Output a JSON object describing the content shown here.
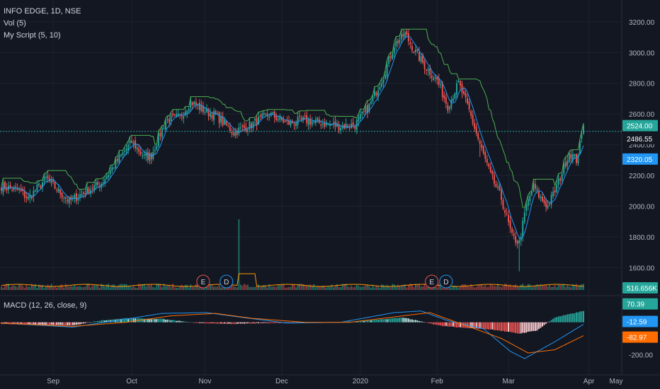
{
  "header": {
    "title": "INFO EDGE, 1D, NSE",
    "vol_label": "Vol (5)",
    "script_label": "My Script (5, 10)",
    "macd_label": "MACD (12, 26, close, 9)"
  },
  "colors": {
    "background": "#131722",
    "up": "#26a69a",
    "down": "#ef5350",
    "fast_line": "#2196f3",
    "slow_line": "#4caf50",
    "macd_line": "#2196f3",
    "signal_line": "#ff6d00",
    "grid": "#1e222d"
  },
  "chart_data": [
    {
      "type": "candlestick",
      "ylim": [
        1500,
        3250
      ],
      "y_ticks": [
        "3200.00",
        "3000.00",
        "2800.00",
        "2600.00",
        "2400.00",
        "2200.00",
        "2000.00",
        "1800.00",
        "1600.00"
      ],
      "x_ticks": [
        "Sep",
        "Oct",
        "Nov",
        "Dec",
        "2020",
        "Feb",
        "Mar",
        "Apr",
        "May"
      ],
      "close_anchors": [
        [
          0,
          2130
        ],
        [
          10,
          2100
        ],
        [
          15,
          2050
        ],
        [
          25,
          2180
        ],
        [
          38,
          2030
        ],
        [
          48,
          2100
        ],
        [
          56,
          2150
        ],
        [
          64,
          2280
        ],
        [
          73,
          2420
        ],
        [
          80,
          2320
        ],
        [
          84,
          2330
        ],
        [
          92,
          2560
        ],
        [
          100,
          2580
        ],
        [
          106,
          2680
        ],
        [
          114,
          2620
        ],
        [
          120,
          2590
        ],
        [
          130,
          2480
        ],
        [
          140,
          2530
        ],
        [
          150,
          2600
        ],
        [
          160,
          2540
        ],
        [
          170,
          2560
        ],
        [
          180,
          2540
        ],
        [
          190,
          2520
        ],
        [
          198,
          2530
        ],
        [
          206,
          2650
        ],
        [
          214,
          2850
        ],
        [
          220,
          3050
        ],
        [
          226,
          3120
        ],
        [
          232,
          3000
        ],
        [
          238,
          2900
        ],
        [
          244,
          2820
        ],
        [
          250,
          2650
        ],
        [
          256,
          2800
        ],
        [
          262,
          2620
        ],
        [
          268,
          2400
        ],
        [
          274,
          2200
        ],
        [
          280,
          2050
        ],
        [
          286,
          1800
        ],
        [
          290,
          1760
        ],
        [
          294,
          2000
        ],
        [
          298,
          2130
        ],
        [
          302,
          2050
        ],
        [
          306,
          2000
        ],
        [
          310,
          2100
        ],
        [
          314,
          2220
        ],
        [
          318,
          2350
        ],
        [
          322,
          2300
        ],
        [
          326,
          2500
        ]
      ],
      "last_close": 2524.0,
      "price_line": 2486.55,
      "labels": {
        "last_close": "2524.00",
        "price_line": "2486.55",
        "fast_line": "2320.05",
        "volume": "516.656K"
      },
      "volume_spike_day": 133,
      "events": [
        {
          "day": 113,
          "letter": "E"
        },
        {
          "day": 126,
          "letter": "D"
        },
        {
          "day": 241,
          "letter": "E"
        },
        {
          "day": 249,
          "letter": "D"
        }
      ],
      "series": [
        {
          "name": "Vol (5)"
        },
        {
          "name": "My Script (5, 10)"
        }
      ]
    },
    {
      "type": "histogram+line",
      "title": "MACD (12, 26, close, 9)",
      "ylim": [
        -260,
        130
      ],
      "y_ticks": [
        "-200.00"
      ],
      "last_values": {
        "histogram": "70.39",
        "macd": "-12.59",
        "signal": "-82.97"
      },
      "hist_anchors": [
        [
          0,
          -10
        ],
        [
          20,
          -15
        ],
        [
          40,
          -20
        ],
        [
          55,
          10
        ],
        [
          70,
          25
        ],
        [
          90,
          20
        ],
        [
          110,
          -5
        ],
        [
          130,
          -10
        ],
        [
          150,
          -5
        ],
        [
          170,
          0
        ],
        [
          190,
          0
        ],
        [
          210,
          15
        ],
        [
          225,
          30
        ],
        [
          245,
          -20
        ],
        [
          260,
          -35
        ],
        [
          275,
          -45
        ],
        [
          290,
          -70
        ],
        [
          300,
          -50
        ],
        [
          310,
          30
        ],
        [
          326,
          70
        ]
      ],
      "macd_anchors": [
        [
          0,
          -5
        ],
        [
          40,
          -30
        ],
        [
          70,
          20
        ],
        [
          90,
          55
        ],
        [
          115,
          60
        ],
        [
          135,
          30
        ],
        [
          160,
          -5
        ],
        [
          190,
          0
        ],
        [
          220,
          60
        ],
        [
          235,
          70
        ],
        [
          250,
          10
        ],
        [
          270,
          -40
        ],
        [
          285,
          -180
        ],
        [
          293,
          -225
        ],
        [
          310,
          -120
        ],
        [
          326,
          -12.59
        ]
      ],
      "signal_anchors": [
        [
          0,
          -5
        ],
        [
          40,
          -25
        ],
        [
          70,
          0
        ],
        [
          95,
          40
        ],
        [
          120,
          55
        ],
        [
          140,
          25
        ],
        [
          170,
          0
        ],
        [
          195,
          0
        ],
        [
          225,
          40
        ],
        [
          240,
          60
        ],
        [
          260,
          -20
        ],
        [
          280,
          -100
        ],
        [
          295,
          -190
        ],
        [
          310,
          -170
        ],
        [
          326,
          -82.97
        ]
      ]
    }
  ]
}
